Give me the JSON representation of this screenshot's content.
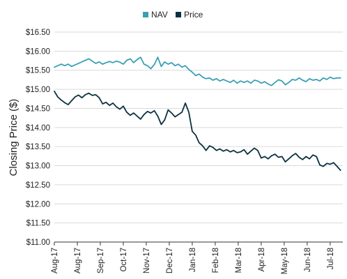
{
  "chart_data": {
    "type": "line",
    "title": "",
    "xlabel": "",
    "ylabel": "Closing Price ($)",
    "legend_position": "top-center",
    "grid": "horizontal",
    "y_ticks": [
      "$11.00",
      "$11.50",
      "$12.00",
      "$12.50",
      "$13.00",
      "$13.50",
      "$14.00",
      "$14.50",
      "$15.00",
      "$15.50",
      "$16.00",
      "$16.50"
    ],
    "ylim": [
      11.0,
      16.5
    ],
    "x_tick_labels": [
      "Aug-17",
      "Aug-17",
      "Sep-17",
      "Oct-17",
      "Nov-17",
      "Dec-17",
      "Jan-18",
      "Feb-18",
      "Mar-18",
      "Apr-18",
      "May-18",
      "Jun-18",
      "Jul-18"
    ],
    "x_ticks_at": [
      0,
      1,
      2,
      3,
      4,
      5,
      6,
      7,
      8,
      9,
      10,
      11,
      12
    ],
    "xlim": [
      0,
      12.55
    ],
    "colors": {
      "nav": "#3aa0b4",
      "price": "#0b3140"
    },
    "series": [
      {
        "name": "NAV",
        "x": [
          0.0,
          0.15,
          0.3,
          0.45,
          0.6,
          0.75,
          0.9,
          1.05,
          1.2,
          1.35,
          1.5,
          1.65,
          1.8,
          1.95,
          2.1,
          2.25,
          2.4,
          2.55,
          2.7,
          2.85,
          3.0,
          3.15,
          3.3,
          3.45,
          3.6,
          3.75,
          3.9,
          4.05,
          4.2,
          4.35,
          4.5,
          4.65,
          4.8,
          4.95,
          5.1,
          5.25,
          5.4,
          5.55,
          5.7,
          5.85,
          6.0,
          6.15,
          6.3,
          6.45,
          6.6,
          6.75,
          6.9,
          7.05,
          7.2,
          7.35,
          7.5,
          7.65,
          7.8,
          7.95,
          8.1,
          8.25,
          8.4,
          8.55,
          8.7,
          8.85,
          9.0,
          9.15,
          9.3,
          9.45,
          9.6,
          9.75,
          9.9,
          10.05,
          10.2,
          10.35,
          10.5,
          10.65,
          10.8,
          10.95,
          11.1,
          11.25,
          11.4,
          11.55,
          11.7,
          11.85,
          12.0,
          12.15,
          12.3,
          12.45
        ],
        "values": [
          15.58,
          15.62,
          15.66,
          15.62,
          15.66,
          15.6,
          15.64,
          15.68,
          15.72,
          15.76,
          15.8,
          15.74,
          15.68,
          15.72,
          15.66,
          15.7,
          15.73,
          15.7,
          15.74,
          15.71,
          15.66,
          15.76,
          15.8,
          15.7,
          15.78,
          15.84,
          15.66,
          15.62,
          15.54,
          15.65,
          15.84,
          15.6,
          15.72,
          15.66,
          15.7,
          15.62,
          15.66,
          15.58,
          15.62,
          15.52,
          15.45,
          15.36,
          15.4,
          15.32,
          15.28,
          15.3,
          15.24,
          15.28,
          15.22,
          15.26,
          15.22,
          15.18,
          15.24,
          15.16,
          15.22,
          15.18,
          15.22,
          15.16,
          15.24,
          15.22,
          15.16,
          15.2,
          15.14,
          15.1,
          15.18,
          15.25,
          15.22,
          15.12,
          15.18,
          15.26,
          15.24,
          15.3,
          15.24,
          15.2,
          15.28,
          15.24,
          15.26,
          15.22,
          15.3,
          15.26,
          15.32,
          15.28,
          15.3,
          15.3
        ]
      },
      {
        "name": "Price",
        "x": [
          0.0,
          0.15,
          0.3,
          0.45,
          0.6,
          0.75,
          0.9,
          1.05,
          1.2,
          1.35,
          1.5,
          1.65,
          1.8,
          1.95,
          2.1,
          2.25,
          2.4,
          2.55,
          2.7,
          2.85,
          3.0,
          3.15,
          3.3,
          3.45,
          3.6,
          3.75,
          3.9,
          4.05,
          4.2,
          4.35,
          4.5,
          4.65,
          4.8,
          4.95,
          5.1,
          5.25,
          5.4,
          5.55,
          5.7,
          5.85,
          6.0,
          6.15,
          6.3,
          6.45,
          6.6,
          6.75,
          6.9,
          7.05,
          7.2,
          7.35,
          7.5,
          7.65,
          7.8,
          7.95,
          8.1,
          8.25,
          8.4,
          8.55,
          8.7,
          8.85,
          9.0,
          9.15,
          9.3,
          9.45,
          9.6,
          9.75,
          9.9,
          10.05,
          10.2,
          10.35,
          10.5,
          10.65,
          10.8,
          10.95,
          11.1,
          11.25,
          11.4,
          11.55,
          11.7,
          11.85,
          12.0,
          12.15,
          12.3,
          12.45
        ],
        "values": [
          14.95,
          14.8,
          14.72,
          14.65,
          14.6,
          14.7,
          14.8,
          14.85,
          14.78,
          14.86,
          14.9,
          14.84,
          14.86,
          14.78,
          14.62,
          14.66,
          14.58,
          14.64,
          14.54,
          14.48,
          14.56,
          14.4,
          14.32,
          14.38,
          14.3,
          14.22,
          14.34,
          14.42,
          14.38,
          14.44,
          14.3,
          14.08,
          14.2,
          14.46,
          14.38,
          14.28,
          14.34,
          14.4,
          14.64,
          14.4,
          13.9,
          13.8,
          13.6,
          13.52,
          13.4,
          13.52,
          13.48,
          13.4,
          13.44,
          13.38,
          13.42,
          13.36,
          13.4,
          13.34,
          13.36,
          13.42,
          13.3,
          13.38,
          13.46,
          13.4,
          13.2,
          13.24,
          13.18,
          13.26,
          13.3,
          13.22,
          13.24,
          13.1,
          13.18,
          13.26,
          13.32,
          13.22,
          13.16,
          13.24,
          13.18,
          13.28,
          13.24,
          13.02,
          12.98,
          13.06,
          13.04,
          13.08,
          12.98,
          12.88
        ]
      }
    ]
  }
}
